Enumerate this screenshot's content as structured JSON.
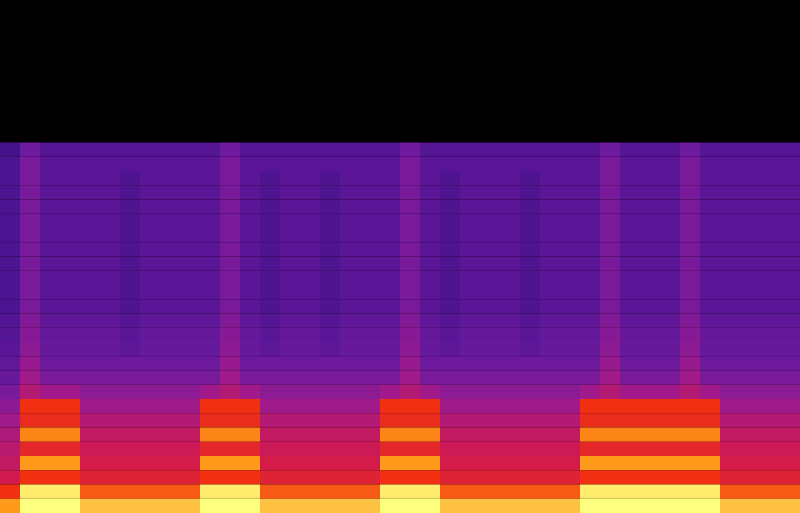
{
  "chart_data": {
    "type": "heatmap",
    "tick_labels": false,
    "cells": [
      [
        0,
        0,
        0,
        0,
        0,
        0,
        0,
        0,
        0,
        0,
        0,
        0,
        0,
        0,
        0,
        0,
        0,
        0,
        0,
        0,
        0,
        0,
        0,
        0,
        0,
        0,
        0,
        0,
        0,
        0,
        0,
        0,
        0,
        0,
        0,
        0,
        0,
        0,
        0,
        0
      ],
      [
        0,
        0,
        0,
        0,
        0,
        0,
        0,
        0,
        0,
        0,
        0,
        0,
        0,
        0,
        0,
        0,
        0,
        0,
        0,
        0,
        0,
        0,
        0,
        0,
        0,
        0,
        0,
        0,
        0,
        0,
        0,
        0,
        0,
        0,
        0,
        0,
        0,
        0,
        0,
        0
      ],
      [
        0,
        0,
        0,
        0,
        0,
        0,
        0,
        0,
        0,
        0,
        0,
        0,
        0,
        0,
        0,
        0,
        0,
        0,
        0,
        0,
        0,
        0,
        0,
        0,
        0,
        0,
        0,
        0,
        0,
        0,
        0,
        0,
        0,
        0,
        0,
        0,
        0,
        0,
        0,
        0
      ],
      [
        0,
        0,
        0,
        0,
        0,
        0,
        0,
        0,
        0,
        0,
        0,
        0,
        0,
        0,
        0,
        0,
        0,
        0,
        0,
        0,
        0,
        0,
        0,
        0,
        0,
        0,
        0,
        0,
        0,
        0,
        0,
        0,
        0,
        0,
        0,
        0,
        0,
        0,
        0,
        0
      ],
      [
        0,
        0,
        0,
        0,
        0,
        0,
        0,
        0,
        0,
        0,
        0,
        0,
        0,
        0,
        0,
        0,
        0,
        0,
        0,
        0,
        0,
        0,
        0,
        0,
        0,
        0,
        0,
        0,
        0,
        0,
        0,
        0,
        0,
        0,
        0,
        0,
        0,
        0,
        0,
        0
      ],
      [
        0,
        0,
        0,
        0,
        0,
        0,
        0,
        0,
        0,
        0,
        0,
        0,
        0,
        0,
        0,
        0,
        0,
        0,
        0,
        0,
        0,
        0,
        0,
        0,
        0,
        0,
        0,
        0,
        0,
        0,
        0,
        0,
        0,
        0,
        0,
        0,
        0,
        0,
        0,
        0
      ],
      [
        0,
        0,
        0,
        0,
        0,
        0,
        0,
        0,
        0,
        0,
        0,
        0,
        0,
        0,
        0,
        0,
        0,
        0,
        0,
        0,
        0,
        0,
        0,
        0,
        0,
        0,
        0,
        0,
        0,
        0,
        0,
        0,
        0,
        0,
        0,
        0,
        0,
        0,
        0,
        0
      ],
      [
        0,
        0,
        0,
        0,
        0,
        0,
        0,
        0,
        0,
        0,
        0,
        0,
        0,
        0,
        0,
        0,
        0,
        0,
        0,
        0,
        0,
        0,
        0,
        0,
        0,
        0,
        0,
        0,
        0,
        0,
        0,
        0,
        0,
        0,
        0,
        0,
        0,
        0,
        0,
        0
      ],
      [
        0,
        0,
        0,
        0,
        0,
        0,
        0,
        0,
        0,
        0,
        0,
        0,
        0,
        0,
        0,
        0,
        0,
        0,
        0,
        0,
        0,
        0,
        0,
        0,
        0,
        0,
        0,
        0,
        0,
        0,
        0,
        0,
        0,
        0,
        0,
        0,
        0,
        0,
        0,
        0
      ],
      [
        0,
        0,
        0,
        0,
        0,
        0,
        0,
        0,
        0,
        0,
        0,
        0,
        0,
        0,
        0,
        0,
        0,
        0,
        0,
        0,
        0,
        0,
        0,
        0,
        0,
        0,
        0,
        0,
        0,
        0,
        0,
        0,
        0,
        0,
        0,
        0,
        0,
        0,
        0,
        0
      ],
      [
        38,
        50,
        42,
        42,
        42,
        42,
        42,
        42,
        42,
        42,
        42,
        50,
        42,
        42,
        42,
        42,
        42,
        42,
        42,
        42,
        50,
        42,
        42,
        42,
        42,
        42,
        42,
        42,
        42,
        42,
        50,
        42,
        42,
        42,
        50,
        42,
        42,
        42,
        42,
        42
      ],
      [
        40,
        52,
        44,
        44,
        44,
        44,
        44,
        44,
        44,
        44,
        44,
        52,
        44,
        44,
        44,
        44,
        44,
        44,
        44,
        44,
        52,
        44,
        44,
        44,
        44,
        44,
        44,
        44,
        44,
        44,
        52,
        44,
        44,
        44,
        52,
        44,
        44,
        44,
        44,
        44
      ],
      [
        40,
        52,
        44,
        44,
        44,
        44,
        41,
        44,
        44,
        44,
        44,
        52,
        44,
        41,
        44,
        44,
        41,
        44,
        44,
        44,
        52,
        44,
        41,
        44,
        44,
        44,
        41,
        44,
        44,
        44,
        52,
        44,
        44,
        44,
        52,
        44,
        44,
        44,
        44,
        44
      ],
      [
        40,
        52,
        44,
        44,
        44,
        44,
        41,
        44,
        44,
        44,
        44,
        52,
        44,
        41,
        44,
        44,
        41,
        44,
        44,
        44,
        52,
        44,
        41,
        44,
        44,
        44,
        41,
        44,
        44,
        44,
        52,
        44,
        44,
        44,
        52,
        44,
        44,
        44,
        44,
        44
      ],
      [
        40,
        52,
        44,
        44,
        44,
        44,
        41,
        44,
        44,
        44,
        44,
        52,
        44,
        41,
        44,
        44,
        41,
        44,
        44,
        44,
        52,
        44,
        41,
        44,
        44,
        44,
        41,
        44,
        44,
        44,
        52,
        44,
        44,
        44,
        52,
        44,
        44,
        44,
        44,
        44
      ],
      [
        40,
        52,
        44,
        44,
        44,
        44,
        41,
        44,
        44,
        44,
        44,
        52,
        44,
        41,
        44,
        44,
        41,
        44,
        44,
        44,
        52,
        44,
        41,
        44,
        44,
        44,
        41,
        44,
        44,
        44,
        52,
        44,
        44,
        44,
        52,
        44,
        44,
        44,
        44,
        44
      ],
      [
        40,
        52,
        44,
        44,
        44,
        44,
        41,
        44,
        44,
        44,
        44,
        52,
        44,
        41,
        44,
        44,
        41,
        44,
        44,
        44,
        52,
        44,
        41,
        44,
        44,
        44,
        41,
        44,
        44,
        44,
        52,
        44,
        44,
        44,
        52,
        44,
        44,
        44,
        44,
        44
      ],
      [
        40,
        52,
        44,
        44,
        44,
        44,
        41,
        44,
        44,
        44,
        44,
        52,
        44,
        41,
        44,
        44,
        41,
        44,
        44,
        44,
        52,
        44,
        41,
        44,
        44,
        44,
        41,
        44,
        44,
        44,
        52,
        44,
        44,
        44,
        52,
        44,
        44,
        44,
        44,
        44
      ],
      [
        40,
        52,
        44,
        44,
        44,
        44,
        41,
        44,
        44,
        44,
        44,
        52,
        44,
        41,
        44,
        44,
        41,
        44,
        44,
        44,
        52,
        44,
        41,
        44,
        44,
        44,
        41,
        44,
        44,
        44,
        52,
        44,
        44,
        44,
        52,
        44,
        44,
        44,
        44,
        44
      ],
      [
        40,
        52,
        44,
        44,
        44,
        44,
        41,
        44,
        44,
        44,
        44,
        52,
        44,
        41,
        44,
        44,
        41,
        44,
        44,
        44,
        52,
        44,
        41,
        44,
        44,
        44,
        41,
        44,
        44,
        44,
        52,
        44,
        44,
        44,
        52,
        44,
        44,
        44,
        44,
        44
      ],
      [
        40,
        52,
        44,
        44,
        44,
        44,
        41,
        44,
        44,
        44,
        44,
        52,
        44,
        41,
        44,
        44,
        41,
        44,
        44,
        44,
        52,
        44,
        41,
        44,
        44,
        44,
        41,
        44,
        44,
        44,
        52,
        44,
        44,
        44,
        52,
        44,
        44,
        44,
        44,
        44
      ],
      [
        40,
        52,
        44,
        44,
        44,
        44,
        41,
        44,
        44,
        44,
        44,
        52,
        44,
        41,
        44,
        44,
        41,
        44,
        44,
        44,
        52,
        44,
        41,
        44,
        44,
        44,
        41,
        44,
        44,
        44,
        52,
        44,
        44,
        44,
        52,
        44,
        44,
        44,
        44,
        44
      ],
      [
        42,
        54,
        46,
        46,
        46,
        46,
        43,
        46,
        46,
        46,
        46,
        54,
        46,
        43,
        46,
        46,
        43,
        46,
        46,
        46,
        54,
        46,
        43,
        46,
        46,
        46,
        43,
        46,
        46,
        46,
        54,
        46,
        46,
        46,
        54,
        46,
        46,
        46,
        46,
        46
      ],
      [
        43,
        55,
        47,
        47,
        47,
        47,
        44,
        47,
        47,
        47,
        47,
        55,
        47,
        44,
        47,
        47,
        44,
        47,
        47,
        47,
        55,
        47,
        44,
        47,
        47,
        47,
        44,
        47,
        47,
        47,
        55,
        47,
        47,
        47,
        55,
        47,
        47,
        47,
        47,
        47
      ],
      [
        44,
        56,
        48,
        48,
        48,
        48,
        45,
        48,
        48,
        48,
        48,
        56,
        48,
        45,
        48,
        48,
        45,
        48,
        48,
        48,
        56,
        48,
        45,
        48,
        48,
        48,
        45,
        48,
        48,
        48,
        56,
        48,
        48,
        48,
        56,
        48,
        48,
        48,
        48,
        48
      ],
      [
        46,
        58,
        50,
        50,
        50,
        50,
        50,
        50,
        50,
        50,
        50,
        58,
        50,
        50,
        50,
        50,
        50,
        50,
        50,
        50,
        58,
        50,
        50,
        50,
        50,
        50,
        50,
        50,
        50,
        50,
        58,
        50,
        50,
        50,
        58,
        50,
        50,
        50,
        50,
        50
      ],
      [
        48,
        60,
        52,
        52,
        52,
        52,
        52,
        52,
        52,
        52,
        52,
        60,
        52,
        52,
        52,
        52,
        52,
        52,
        52,
        52,
        60,
        52,
        52,
        52,
        52,
        52,
        52,
        52,
        52,
        52,
        60,
        52,
        52,
        52,
        60,
        52,
        52,
        52,
        52,
        52
      ],
      [
        52,
        64,
        60,
        60,
        56,
        56,
        56,
        56,
        56,
        56,
        60,
        64,
        60,
        56,
        56,
        56,
        56,
        56,
        56,
        60,
        64,
        60,
        56,
        56,
        56,
        56,
        56,
        56,
        56,
        60,
        64,
        60,
        60,
        60,
        64,
        60,
        56,
        56,
        56,
        56
      ],
      [
        56,
        80,
        80,
        80,
        60,
        60,
        60,
        60,
        60,
        60,
        80,
        80,
        80,
        60,
        60,
        60,
        60,
        60,
        60,
        80,
        80,
        80,
        60,
        60,
        60,
        60,
        60,
        60,
        60,
        80,
        80,
        80,
        80,
        80,
        80,
        80,
        60,
        60,
        60,
        60
      ],
      [
        60,
        78,
        78,
        78,
        64,
        64,
        64,
        64,
        64,
        64,
        78,
        78,
        78,
        64,
        64,
        64,
        64,
        64,
        64,
        78,
        78,
        78,
        64,
        64,
        64,
        64,
        64,
        64,
        64,
        78,
        78,
        78,
        78,
        78,
        78,
        78,
        64,
        64,
        64,
        64
      ],
      [
        63,
        88,
        88,
        88,
        67,
        67,
        67,
        67,
        67,
        67,
        88,
        88,
        88,
        67,
        67,
        67,
        67,
        67,
        67,
        88,
        88,
        88,
        67,
        67,
        67,
        67,
        67,
        67,
        67,
        88,
        88,
        88,
        88,
        88,
        88,
        88,
        67,
        67,
        67,
        67
      ],
      [
        65,
        76,
        76,
        76,
        69,
        69,
        69,
        69,
        69,
        69,
        76,
        76,
        76,
        69,
        69,
        69,
        69,
        69,
        69,
        76,
        76,
        76,
        69,
        69,
        69,
        69,
        69,
        69,
        69,
        76,
        76,
        76,
        76,
        76,
        76,
        76,
        69,
        69,
        69,
        69
      ],
      [
        67,
        90,
        90,
        90,
        71,
        71,
        71,
        71,
        71,
        71,
        90,
        90,
        90,
        71,
        71,
        71,
        71,
        71,
        71,
        90,
        90,
        90,
        71,
        71,
        71,
        71,
        71,
        71,
        71,
        90,
        90,
        90,
        90,
        90,
        90,
        90,
        71,
        71,
        71,
        71
      ],
      [
        70,
        80,
        80,
        80,
        74,
        74,
        74,
        74,
        74,
        74,
        80,
        80,
        80,
        74,
        74,
        74,
        74,
        74,
        74,
        80,
        80,
        80,
        74,
        74,
        74,
        74,
        74,
        74,
        74,
        80,
        80,
        80,
        80,
        80,
        80,
        80,
        74,
        74,
        74,
        74
      ],
      [
        80,
        98,
        98,
        98,
        84,
        84,
        84,
        84,
        84,
        84,
        98,
        98,
        98,
        84,
        84,
        84,
        84,
        84,
        84,
        98,
        98,
        98,
        84,
        84,
        84,
        84,
        84,
        84,
        84,
        98,
        98,
        98,
        98,
        98,
        98,
        98,
        84,
        84,
        84,
        84
      ],
      [
        90,
        100,
        100,
        100,
        94,
        94,
        94,
        94,
        94,
        94,
        100,
        100,
        100,
        94,
        94,
        94,
        94,
        94,
        94,
        100,
        100,
        100,
        94,
        94,
        94,
        94,
        94,
        94,
        94,
        100,
        100,
        100,
        100,
        100,
        100,
        100,
        94,
        94,
        94,
        94
      ]
    ]
  }
}
